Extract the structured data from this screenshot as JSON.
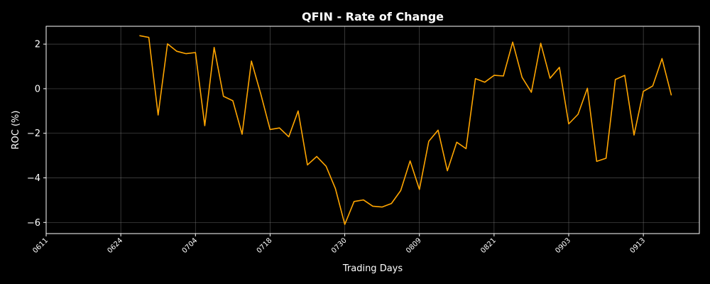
{
  "chart_data": {
    "type": "line",
    "title": "QFIN - Rate of Change",
    "xlabel": "Trading Days",
    "ylabel": "ROC (%)",
    "grid": true,
    "colors": {
      "background": "#000000",
      "line": "#ffa500",
      "axes": "#ffffff",
      "grid": "#808080"
    },
    "x_ticks": [
      "0611",
      "0624",
      "0704",
      "0718",
      "0730",
      "0809",
      "0821",
      "0903",
      "0913"
    ],
    "y_ticks": [
      2,
      0,
      -2,
      -4,
      -6
    ],
    "xlim": [
      0,
      70
    ],
    "ylim": [
      -6.5,
      2.8
    ],
    "series": [
      {
        "x": [
          10,
          11,
          12,
          13,
          14,
          15,
          16,
          17,
          18,
          19,
          20,
          21,
          22,
          23,
          24,
          25,
          26,
          27,
          28,
          29,
          30,
          31,
          32,
          33,
          34,
          35,
          36,
          37,
          38,
          39,
          40,
          41,
          42,
          43,
          44,
          45,
          46,
          47,
          48,
          49,
          50,
          51,
          52,
          53,
          54,
          55,
          56,
          57,
          58,
          59,
          60,
          61,
          62,
          63,
          64,
          65,
          66,
          67,
          68,
          69
        ],
        "values": [
          2.38,
          2.3,
          -1.18,
          2.01,
          1.68,
          1.57,
          1.62,
          -1.66,
          1.85,
          -0.34,
          -0.54,
          -2.04,
          1.24,
          -0.24,
          -1.83,
          -1.76,
          -2.16,
          -1.0,
          -3.42,
          -3.04,
          -3.48,
          -4.48,
          -6.09,
          -5.06,
          -4.99,
          -5.27,
          -5.31,
          -5.15,
          -4.57,
          -3.24,
          -4.52,
          -2.36,
          -1.86,
          -3.68,
          -2.4,
          -2.69,
          0.45,
          0.29,
          0.6,
          0.57,
          2.09,
          0.51,
          -0.16,
          2.04,
          0.47,
          0.96,
          -1.58,
          -1.15,
          0.02,
          -3.26,
          -3.12,
          0.41,
          0.6,
          -2.08,
          -0.12,
          0.12,
          1.35,
          -0.3,
          null,
          null
        ]
      }
    ]
  }
}
